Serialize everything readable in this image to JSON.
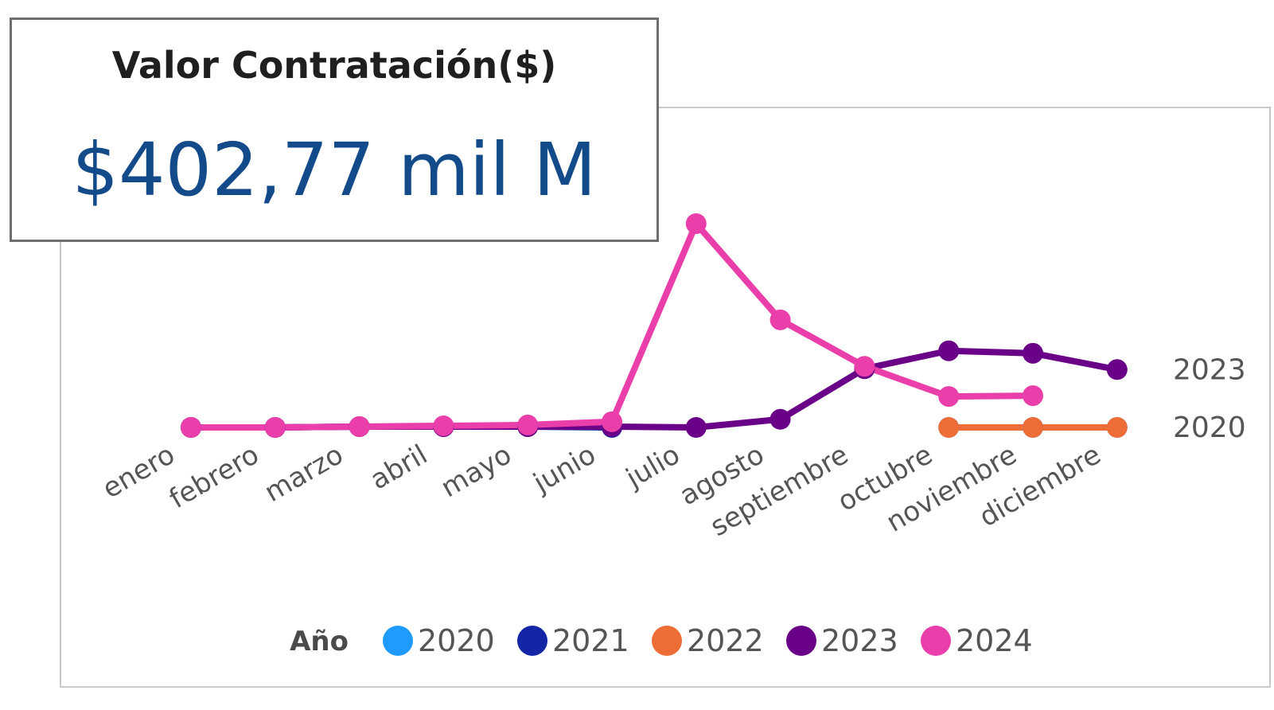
{
  "kpi": {
    "title": "Valor Contratación($)",
    "value": "$402,77 mil M"
  },
  "chart_data": {
    "type": "line",
    "title": "",
    "xlabel": "",
    "ylabel": "",
    "ylim": [
      -10,
      260
    ],
    "grid": false,
    "legend_position": "bottom",
    "legend_title": "Año",
    "categories": [
      "enero",
      "febrero",
      "marzo",
      "abril",
      "mayo",
      "junio",
      "julio",
      "agosto",
      "septiembre",
      "octubre",
      "noviembre",
      "diciembre"
    ],
    "series": [
      {
        "name": "2020",
        "color": "#1f9bff",
        "values": [
          null,
          null,
          null,
          null,
          null,
          null,
          null,
          null,
          null,
          0,
          0,
          0
        ],
        "end_label": "2020"
      },
      {
        "name": "2021",
        "color": "#1226a6",
        "values": [
          0,
          0,
          1,
          1,
          1,
          0,
          null,
          null,
          null,
          null,
          null,
          null
        ]
      },
      {
        "name": "2022",
        "color": "#ee6c36",
        "values": [
          null,
          null,
          null,
          null,
          null,
          null,
          null,
          null,
          null,
          0,
          0,
          0
        ]
      },
      {
        "name": "2023",
        "color": "#6a0087",
        "values": [
          0,
          0,
          1,
          1,
          1,
          1,
          0,
          10,
          72,
          94,
          91,
          71
        ],
        "end_label": "2023"
      },
      {
        "name": "2024",
        "color": "#ea3fab",
        "values": [
          0,
          0,
          1,
          2,
          3,
          7,
          250,
          132,
          75,
          38,
          39,
          null
        ]
      }
    ]
  }
}
